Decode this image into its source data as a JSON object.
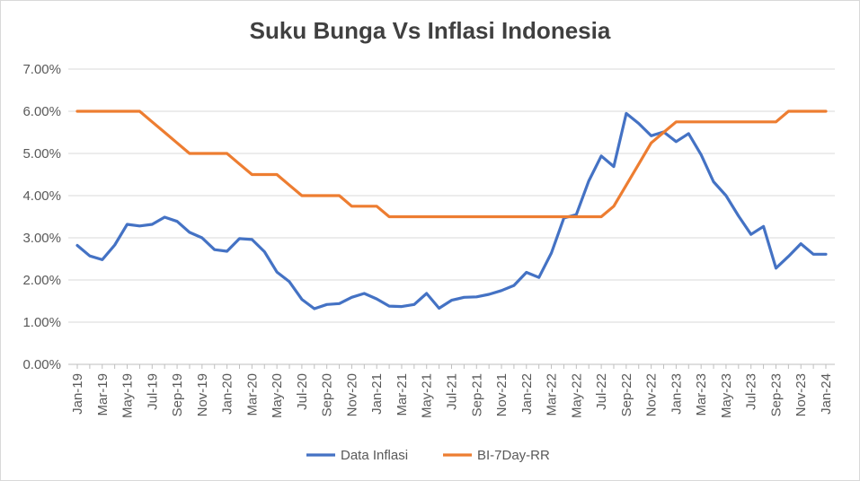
{
  "chart_data": {
    "type": "line",
    "title": "Suku Bunga Vs Inflasi Indonesia",
    "xlabel": "",
    "ylabel": "",
    "ylim": [
      0,
      7
    ],
    "y_ticks": [
      "0.00%",
      "1.00%",
      "2.00%",
      "3.00%",
      "4.00%",
      "5.00%",
      "6.00%",
      "7.00%"
    ],
    "grid": true,
    "legend_position": "bottom",
    "x": [
      "Jan-19",
      "Feb-19",
      "Mar-19",
      "Apr-19",
      "May-19",
      "Jun-19",
      "Jul-19",
      "Aug-19",
      "Sep-19",
      "Oct-19",
      "Nov-19",
      "Dec-19",
      "Jan-20",
      "Feb-20",
      "Mar-20",
      "Apr-20",
      "May-20",
      "Jun-20",
      "Jul-20",
      "Aug-20",
      "Sep-20",
      "Oct-20",
      "Nov-20",
      "Dec-20",
      "Jan-21",
      "Feb-21",
      "Mar-21",
      "Apr-21",
      "May-21",
      "Jun-21",
      "Jul-21",
      "Aug-21",
      "Sep-21",
      "Oct-21",
      "Nov-21",
      "Dec-21",
      "Jan-22",
      "Feb-22",
      "Mar-22",
      "Apr-22",
      "May-22",
      "Jun-22",
      "Jul-22",
      "Aug-22",
      "Sep-22",
      "Oct-22",
      "Nov-22",
      "Dec-22",
      "Jan-23",
      "Feb-23",
      "Mar-23",
      "Apr-23",
      "May-23",
      "Jun-23",
      "Jul-23",
      "Aug-23",
      "Sep-23",
      "Oct-23",
      "Nov-23",
      "Dec-23",
      "Jan-24"
    ],
    "x_tick_labels": [
      "Jan-19",
      "Mar-19",
      "May-19",
      "Jul-19",
      "Sep-19",
      "Nov-19",
      "Jan-20",
      "Mar-20",
      "May-20",
      "Jul-20",
      "Sep-20",
      "Nov-20",
      "Jan-21",
      "Mar-21",
      "May-21",
      "Jul-21",
      "Sep-21",
      "Nov-21",
      "Jan-22",
      "Mar-22",
      "May-22",
      "Jul-22",
      "Sep-22",
      "Nov-22",
      "Jan-23",
      "Mar-23",
      "May-23",
      "Jul-23",
      "Sep-23",
      "Nov-23",
      "Jan-24"
    ],
    "series": [
      {
        "name": "Data Inflasi",
        "color": "#4472c4",
        "values": [
          2.82,
          2.57,
          2.48,
          2.83,
          3.32,
          3.28,
          3.32,
          3.49,
          3.39,
          3.13,
          3.0,
          2.72,
          2.68,
          2.98,
          2.96,
          2.67,
          2.19,
          1.96,
          1.54,
          1.32,
          1.42,
          1.44,
          1.59,
          1.68,
          1.55,
          1.38,
          1.37,
          1.42,
          1.68,
          1.33,
          1.52,
          1.59,
          1.6,
          1.66,
          1.75,
          1.87,
          2.18,
          2.06,
          2.64,
          3.47,
          3.55,
          4.35,
          4.94,
          4.69,
          5.95,
          5.71,
          5.42,
          5.51,
          5.28,
          5.47,
          4.97,
          4.33,
          4.0,
          3.52,
          3.08,
          3.27,
          2.28,
          2.56,
          2.86,
          2.61,
          2.61
        ]
      },
      {
        "name": "BI-7Day-RR",
        "color": "#ed7d31",
        "values": [
          6.0,
          6.0,
          6.0,
          6.0,
          6.0,
          6.0,
          5.75,
          5.5,
          5.25,
          5.0,
          5.0,
          5.0,
          5.0,
          4.75,
          4.5,
          4.5,
          4.5,
          4.25,
          4.0,
          4.0,
          4.0,
          4.0,
          3.75,
          3.75,
          3.75,
          3.5,
          3.5,
          3.5,
          3.5,
          3.5,
          3.5,
          3.5,
          3.5,
          3.5,
          3.5,
          3.5,
          3.5,
          3.5,
          3.5,
          3.5,
          3.5,
          3.5,
          3.5,
          3.75,
          4.25,
          4.75,
          5.25,
          5.5,
          5.75,
          5.75,
          5.75,
          5.75,
          5.75,
          5.75,
          5.75,
          5.75,
          5.75,
          6.0,
          6.0,
          6.0,
          6.0
        ]
      }
    ]
  }
}
